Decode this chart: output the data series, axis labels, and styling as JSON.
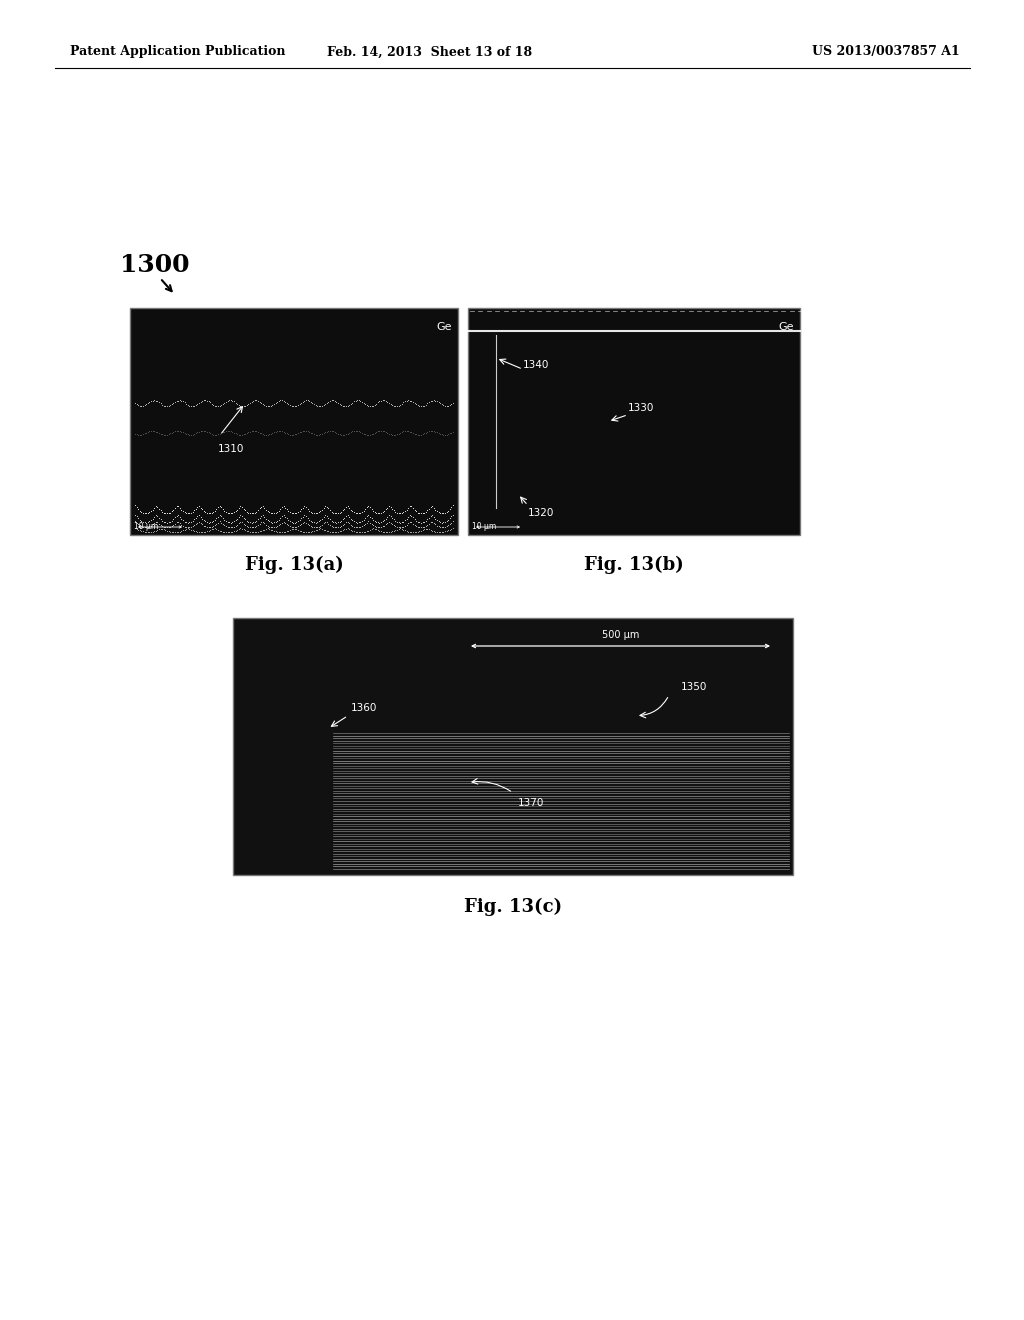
{
  "page_bg": "#ffffff",
  "header_left": "Patent Application Publication",
  "header_mid": "Feb. 14, 2013  Sheet 13 of 18",
  "header_right": "US 2013/0037857 A1",
  "label_1300": "1300",
  "fig_a_label": "Fig. 13(a)",
  "fig_b_label": "Fig. 13(b)",
  "fig_c_label": "Fig. 13(c)",
  "fig_a_ge_label": "Ge",
  "fig_b_ge_label": "Ge",
  "fig_a_1310": "1310",
  "fig_b_1320": "1320",
  "fig_b_1330": "1330",
  "fig_b_1340": "1340",
  "fig_c_scale": "500 μm",
  "fig_c_1350": "1350",
  "fig_c_1360": "1360",
  "fig_c_1370": "1370",
  "header_fontsize": 9,
  "label_1300_fontsize": 18,
  "caption_fontsize": 13
}
